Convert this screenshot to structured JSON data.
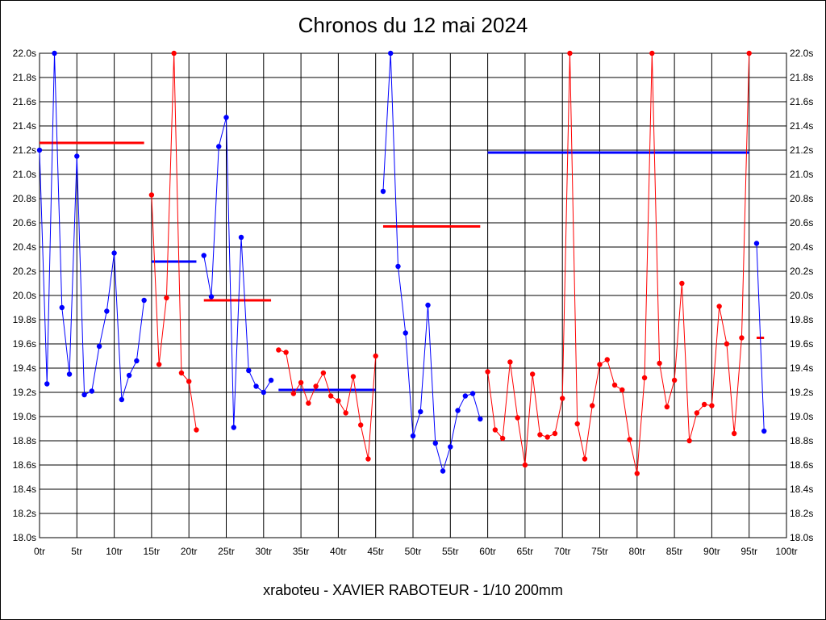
{
  "chart_data": {
    "type": "line",
    "title": "Chronos du 12 mai 2024",
    "subtitle": "xraboteu - XAVIER RABOTEUR - 1/10 200mm",
    "xlabel": "",
    "ylabel": "",
    "xlim": [
      0,
      100
    ],
    "ylim": [
      18.0,
      22.0
    ],
    "grid": true,
    "x_ticks": [
      "0tr",
      "5tr",
      "10tr",
      "15tr",
      "20tr",
      "25tr",
      "30tr",
      "35tr",
      "40tr",
      "45tr",
      "50tr",
      "55tr",
      "60tr",
      "65tr",
      "70tr",
      "75tr",
      "80tr",
      "85tr",
      "90tr",
      "95tr",
      "100tr"
    ],
    "y_ticks": [
      "18.0s",
      "18.2s",
      "18.4s",
      "18.6s",
      "18.8s",
      "19.0s",
      "19.2s",
      "19.4s",
      "19.6s",
      "19.8s",
      "20.0s",
      "20.2s",
      "20.4s",
      "20.6s",
      "20.8s",
      "21.0s",
      "21.2s",
      "21.4s",
      "21.6s",
      "21.8s",
      "22.0s"
    ],
    "colors": {
      "blue": "#0000ff",
      "red": "#ff0000"
    },
    "series": [
      {
        "color": "#0000ff",
        "x": [
          0,
          1,
          2,
          3,
          4,
          5,
          6,
          7,
          8,
          9,
          10,
          11,
          12,
          13,
          14
        ],
        "y": [
          21.2,
          19.27,
          22.0,
          19.9,
          19.35,
          21.15,
          19.18,
          19.21,
          19.58,
          19.87,
          20.35,
          19.14,
          19.34,
          19.46,
          19.96
        ]
      },
      {
        "color": "#ff0000",
        "x": [
          15,
          16,
          17,
          18,
          19,
          20,
          21
        ],
        "y": [
          20.83,
          19.43,
          19.98,
          22.0,
          19.36,
          19.29,
          18.89
        ]
      },
      {
        "color": "#0000ff",
        "x": [
          22,
          23,
          24,
          25,
          26,
          27,
          28,
          29,
          30,
          31
        ],
        "y": [
          20.33,
          19.99,
          21.23,
          21.47,
          18.91,
          20.48,
          19.38,
          19.25,
          19.2,
          19.3
        ]
      },
      {
        "color": "#ff0000",
        "x": [
          32,
          33,
          34,
          35,
          36,
          37,
          38,
          39,
          40,
          41,
          42,
          43,
          44,
          45
        ],
        "y": [
          19.55,
          19.53,
          19.19,
          19.28,
          19.11,
          19.25,
          19.36,
          19.17,
          19.13,
          19.03,
          19.33,
          18.93,
          18.65,
          19.5
        ]
      },
      {
        "color": "#0000ff",
        "x": [
          46,
          47,
          48,
          49,
          50,
          51,
          52,
          53,
          54,
          55,
          56,
          57,
          58,
          59
        ],
        "y": [
          20.86,
          22.0,
          20.24,
          19.69,
          18.84,
          19.04,
          19.92,
          18.78,
          18.55,
          18.75,
          19.05,
          19.17,
          19.19,
          18.98
        ]
      },
      {
        "color": "#ff0000",
        "x": [
          60,
          61,
          62,
          63,
          64,
          65,
          66,
          67,
          68,
          69,
          70,
          71,
          72,
          73,
          74,
          75,
          76,
          77,
          78,
          79,
          80,
          81,
          82,
          83,
          84,
          85,
          86,
          87,
          88,
          89,
          90,
          91,
          92,
          93,
          94,
          95
        ],
        "y": [
          19.37,
          18.89,
          18.82,
          19.45,
          18.99,
          18.6,
          19.35,
          18.85,
          18.83,
          18.86,
          19.15,
          22.0,
          18.94,
          18.65,
          19.09,
          19.43,
          19.47,
          19.26,
          19.22,
          18.81,
          18.53,
          19.32,
          22.0,
          19.44,
          19.08,
          19.3,
          20.1,
          18.8,
          19.03,
          19.1,
          19.09,
          19.91,
          19.6,
          18.86,
          19.65,
          22.0
        ]
      },
      {
        "color": "#0000ff",
        "x": [
          96,
          97
        ],
        "y": [
          20.43,
          18.88
        ]
      }
    ],
    "averages": [
      {
        "color": "#ff0000",
        "x": [
          0,
          14
        ],
        "y": 21.26
      },
      {
        "color": "#0000ff",
        "x": [
          15,
          21
        ],
        "y": 20.28
      },
      {
        "color": "#ff0000",
        "x": [
          22,
          31
        ],
        "y": 19.96
      },
      {
        "color": "#0000ff",
        "x": [
          32,
          45
        ],
        "y": 19.22
      },
      {
        "color": "#ff0000",
        "x": [
          46,
          59
        ],
        "y": 20.57
      },
      {
        "color": "#0000ff",
        "x": [
          60,
          95
        ],
        "y": 21.18
      },
      {
        "color": "#ff0000",
        "x": [
          96,
          97
        ],
        "y": 19.65
      }
    ]
  }
}
